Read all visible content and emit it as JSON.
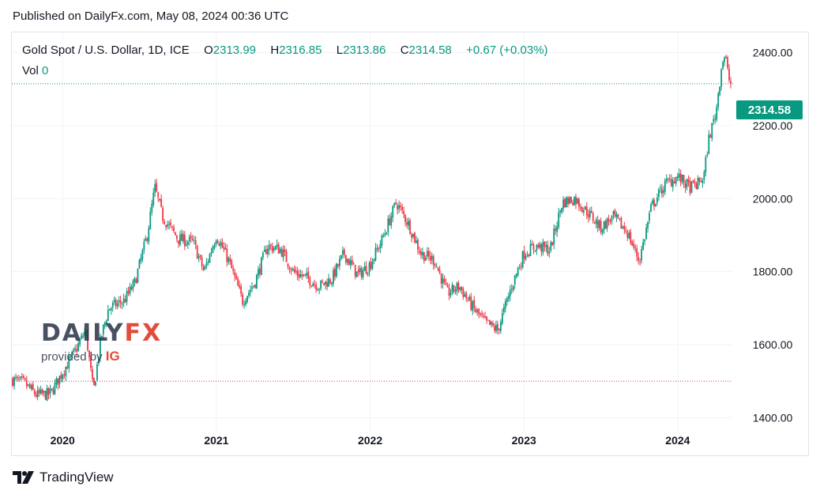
{
  "published": "Published on DailyFx.com, May 08, 2024 00:36 UTC",
  "legend": {
    "title": "Gold Spot / U.S. Dollar, 1D, ICE",
    "open_label": "O",
    "open": "2313.99",
    "high_label": "H",
    "high": "2316.85",
    "low_label": "L",
    "low": "2313.86",
    "close_label": "C",
    "close": "2314.58",
    "change": "+0.67 (+0.03%)",
    "vol_label": "Vol",
    "vol": "0"
  },
  "price_tag": "2314.58",
  "watermark": {
    "brand": "DAILY",
    "brand_accent": "FX",
    "sub": "provided by",
    "sub_accent": "IG"
  },
  "footer": {
    "brand": "TradingView"
  },
  "colors": {
    "up": "#089981",
    "down": "#f23645",
    "grid": "#f0f3fa",
    "axis_text": "#131722"
  },
  "chart_data": {
    "type": "candlestick",
    "title": "Gold Spot / U.S. Dollar, 1D, ICE",
    "ylim": [
      1360,
      2455
    ],
    "y_ticks": [
      "1400.00",
      "1600.00",
      "1800.00",
      "2000.00",
      "2200.00",
      "2400.00"
    ],
    "x_ticks": [
      "2020",
      "2021",
      "2022",
      "2023",
      "2024"
    ],
    "x_tick_years": [
      2020,
      2021,
      2022,
      2023,
      2024
    ],
    "x_range": [
      2019.67,
      2024.35
    ],
    "last_price": 2314.58,
    "reference_level": 1500,
    "grid": true,
    "price_path": [
      [
        2019.67,
        1505
      ],
      [
        2019.75,
        1495
      ],
      [
        2019.83,
        1462
      ],
      [
        2019.92,
        1465
      ],
      [
        2020.0,
        1525
      ],
      [
        2020.08,
        1580
      ],
      [
        2020.15,
        1640
      ],
      [
        2020.2,
        1470
      ],
      [
        2020.25,
        1620
      ],
      [
        2020.3,
        1700
      ],
      [
        2020.4,
        1720
      ],
      [
        2020.47,
        1770
      ],
      [
        2020.55,
        1900
      ],
      [
        2020.6,
        2030
      ],
      [
        2020.65,
        1950
      ],
      [
        2020.75,
        1890
      ],
      [
        2020.85,
        1880
      ],
      [
        2020.92,
        1800
      ],
      [
        2021.0,
        1900
      ],
      [
        2021.08,
        1830
      ],
      [
        2021.17,
        1720
      ],
      [
        2021.25,
        1770
      ],
      [
        2021.33,
        1870
      ],
      [
        2021.42,
        1860
      ],
      [
        2021.5,
        1800
      ],
      [
        2021.6,
        1780
      ],
      [
        2021.67,
        1760
      ],
      [
        2021.75,
        1780
      ],
      [
        2021.83,
        1850
      ],
      [
        2021.92,
        1790
      ],
      [
        2022.0,
        1820
      ],
      [
        2022.08,
        1890
      ],
      [
        2022.17,
        1990
      ],
      [
        2022.25,
        1930
      ],
      [
        2022.33,
        1850
      ],
      [
        2022.42,
        1830
      ],
      [
        2022.5,
        1740
      ],
      [
        2022.58,
        1760
      ],
      [
        2022.67,
        1700
      ],
      [
        2022.75,
        1660
      ],
      [
        2022.83,
        1640
      ],
      [
        2022.92,
        1760
      ],
      [
        2023.0,
        1850
      ],
      [
        2023.08,
        1870
      ],
      [
        2023.17,
        1860
      ],
      [
        2023.25,
        1990
      ],
      [
        2023.33,
        2000
      ],
      [
        2023.42,
        1960
      ],
      [
        2023.5,
        1920
      ],
      [
        2023.58,
        1950
      ],
      [
        2023.67,
        1910
      ],
      [
        2023.75,
        1830
      ],
      [
        2023.83,
        1980
      ],
      [
        2023.92,
        2040
      ],
      [
        2024.0,
        2060
      ],
      [
        2024.08,
        2030
      ],
      [
        2024.13,
        2040
      ],
      [
        2024.17,
        2060
      ],
      [
        2024.2,
        2160
      ],
      [
        2024.25,
        2240
      ],
      [
        2024.29,
        2380
      ],
      [
        2024.31,
        2390
      ],
      [
        2024.33,
        2330
      ],
      [
        2024.35,
        2314.58
      ]
    ]
  }
}
